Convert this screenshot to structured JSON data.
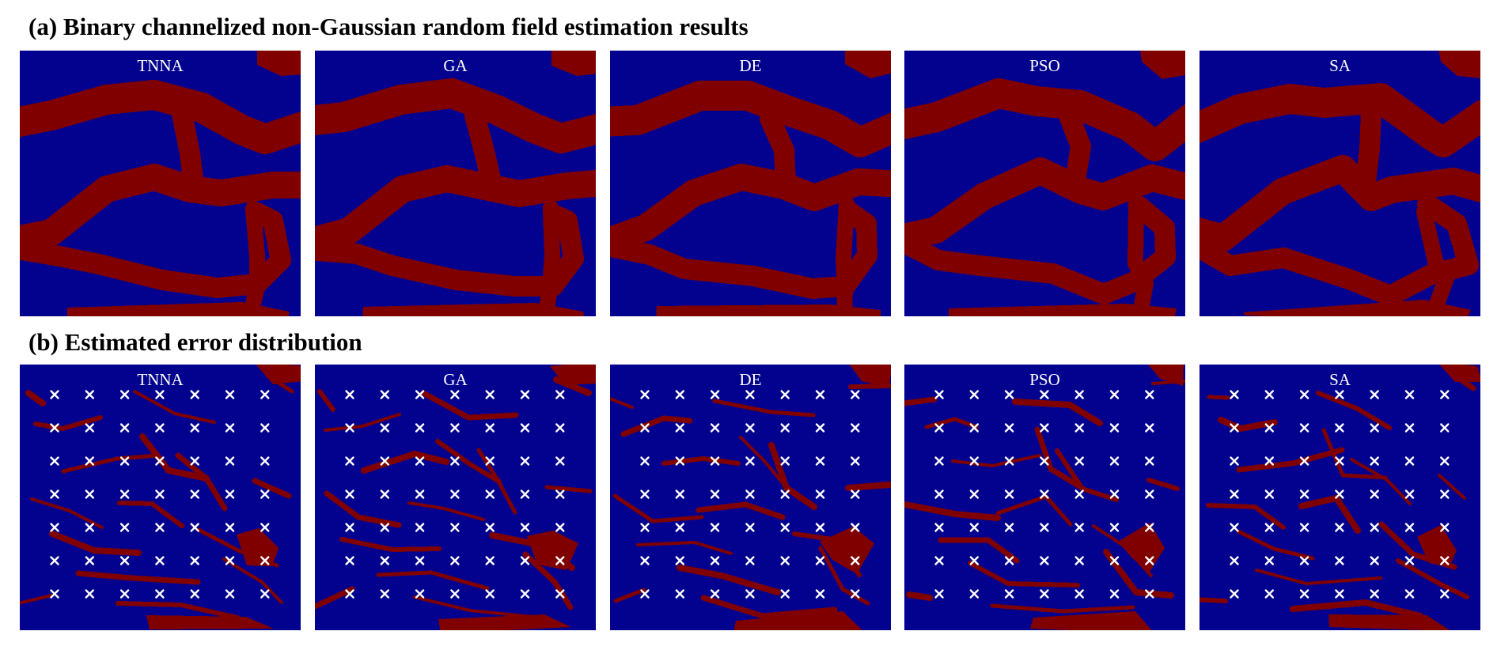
{
  "sections": {
    "estimation": {
      "title": "(a) Binary channelized non-Gaussian random field estimation results"
    },
    "error": {
      "title": "(b) Estimated error distribution"
    }
  },
  "methods": [
    "TNNA",
    "GA",
    "DE",
    "PSO",
    "SA"
  ],
  "colors": {
    "background_field": "#03028e",
    "channel_field": "#800000",
    "sensor_marker": "#ffffff",
    "label_text": "#ffffff"
  },
  "sensor_grid": {
    "rows": 7,
    "cols": 7,
    "marker": "×"
  },
  "panels": {
    "estimation": [
      {
        "label": "TNNA"
      },
      {
        "label": "GA"
      },
      {
        "label": "DE"
      },
      {
        "label": "PSO"
      },
      {
        "label": "SA"
      }
    ],
    "error": [
      {
        "label": "TNNA"
      },
      {
        "label": "GA"
      },
      {
        "label": "DE"
      },
      {
        "label": "PSO"
      },
      {
        "label": "SA"
      }
    ]
  }
}
